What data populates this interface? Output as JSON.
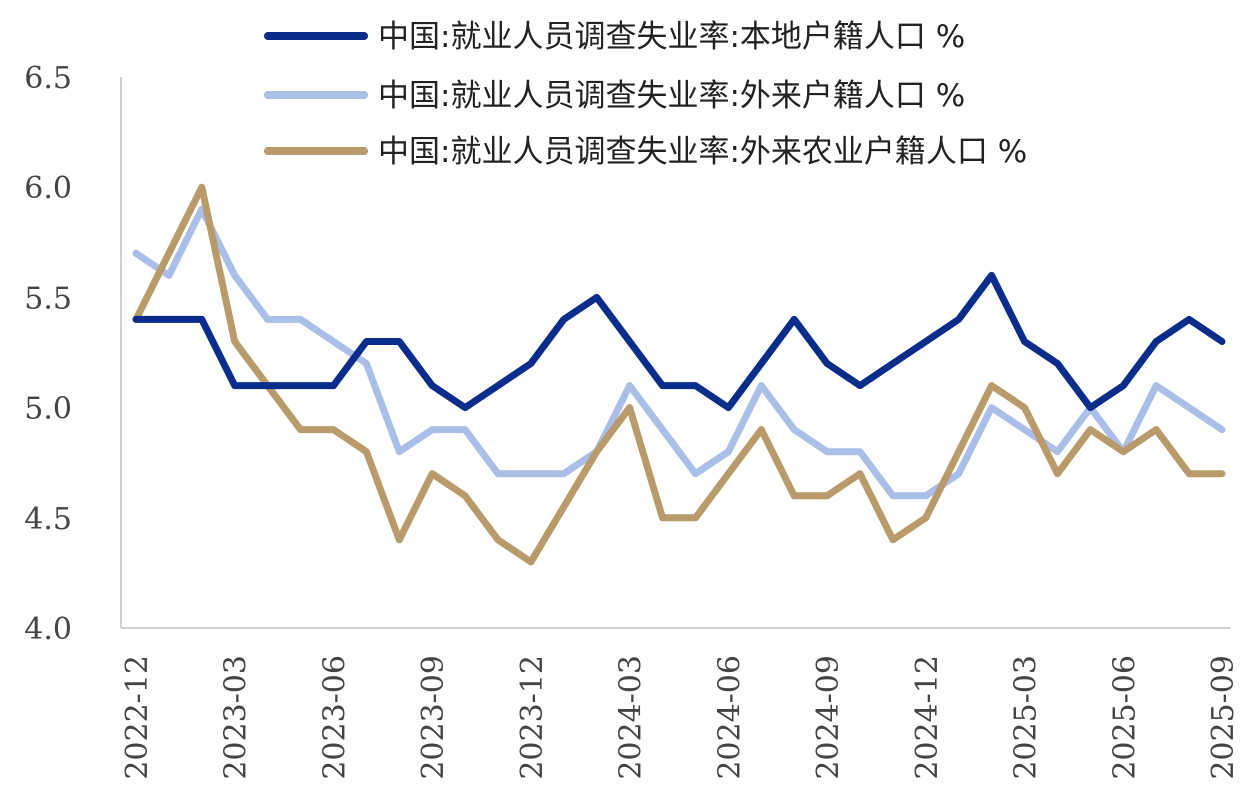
{
  "chart_data": {
    "type": "line",
    "title": "",
    "xlabel": "",
    "ylabel": "",
    "ylim": [
      4.0,
      6.5
    ],
    "yticks": [
      "4.0",
      "4.5",
      "5.0",
      "5.5",
      "6.0",
      "6.5"
    ],
    "grid": false,
    "legend_position": "top",
    "x": [
      "2022-12",
      "2023-01",
      "2023-02",
      "2023-03",
      "2023-04",
      "2023-05",
      "2023-06",
      "2023-07",
      "2023-08",
      "2023-09",
      "2023-10",
      "2023-11",
      "2023-12",
      "2024-01",
      "2024-02",
      "2024-03",
      "2024-04",
      "2024-05",
      "2024-06",
      "2024-07",
      "2024-08",
      "2024-09",
      "2024-10",
      "2024-11",
      "2024-12",
      "2025-01",
      "2025-02",
      "2025-03",
      "2025-04",
      "2025-05",
      "2025-06",
      "2025-07",
      "2025-08",
      "2025-09"
    ],
    "xtick_labels": [
      "2022-12",
      "2023-03",
      "2023-06",
      "2023-09",
      "2023-12",
      "2024-03",
      "2024-06",
      "2024-09",
      "2024-12",
      "2025-03",
      "2025-06",
      "2025-09"
    ],
    "series": [
      {
        "name": "中国:就业人员调查失业率:本地户籍人口 %",
        "color": "#0a2d8c",
        "values": [
          5.4,
          5.4,
          5.4,
          5.1,
          5.1,
          5.1,
          5.1,
          5.3,
          5.3,
          5.1,
          5.0,
          5.1,
          5.2,
          5.4,
          5.5,
          5.3,
          5.1,
          5.1,
          5.0,
          5.2,
          5.4,
          5.2,
          5.1,
          5.2,
          5.3,
          5.4,
          5.6,
          5.3,
          5.2,
          5.0,
          5.1,
          5.3,
          5.4,
          5.3
        ]
      },
      {
        "name": "中国:就业人员调查失业率:外来户籍人口 %",
        "color": "#a9bfe8",
        "values": [
          5.7,
          5.6,
          5.9,
          5.6,
          5.4,
          5.4,
          5.3,
          5.2,
          4.8,
          4.9,
          4.9,
          4.7,
          4.7,
          4.7,
          4.8,
          5.1,
          4.9,
          4.7,
          4.8,
          5.1,
          4.9,
          4.8,
          4.8,
          4.6,
          4.6,
          4.7,
          5.0,
          4.9,
          4.8,
          5.0,
          4.8,
          5.1,
          5.0,
          4.9
        ]
      },
      {
        "name": "中国:就业人员调查失业率:外来农业户籍人口 %",
        "color": "#b99a6b",
        "values": [
          5.4,
          5.7,
          6.0,
          5.3,
          5.1,
          4.9,
          4.9,
          4.8,
          4.4,
          4.7,
          4.6,
          4.4,
          4.3,
          4.55,
          4.8,
          5.0,
          4.5,
          4.5,
          4.7,
          4.9,
          4.6,
          4.6,
          4.7,
          4.4,
          4.5,
          4.8,
          5.1,
          5.0,
          4.7,
          4.9,
          4.8,
          4.9,
          4.7,
          4.7
        ]
      }
    ]
  }
}
